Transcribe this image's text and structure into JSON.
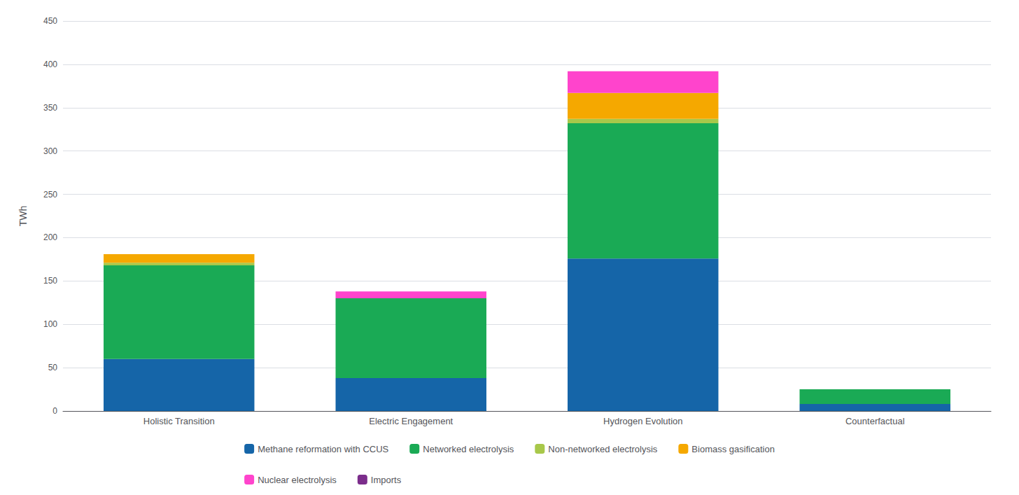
{
  "chart_data": {
    "type": "bar",
    "stacked": true,
    "categories": [
      "Holistic Transition",
      "Electric Engagement",
      "Hydrogen Evolution",
      "Counterfactual"
    ],
    "series": [
      {
        "name": "Methane reformation with CCUS",
        "color": "#1565a8",
        "values": [
          60,
          38,
          176,
          8
        ]
      },
      {
        "name": "Networked electrolysis",
        "color": "#1aaa55",
        "values": [
          108,
          92,
          156,
          17
        ]
      },
      {
        "name": "Non-networked electrolysis",
        "color": "#a8c84a",
        "values": [
          3,
          0,
          5,
          0
        ]
      },
      {
        "name": "Biomass gasification",
        "color": "#f5a800",
        "values": [
          10,
          0,
          30,
          0
        ]
      },
      {
        "name": "Nuclear electrolysis",
        "color": "#ff44cc",
        "values": [
          0,
          8,
          25,
          0
        ]
      },
      {
        "name": "Imports",
        "color": "#7b2d8b",
        "values": [
          0,
          0,
          0,
          0
        ]
      }
    ],
    "ylabel": "TWh",
    "ylim": [
      0,
      450
    ],
    "yticks": [
      0,
      50,
      100,
      150,
      200,
      250,
      300,
      350,
      400,
      450
    ],
    "grid": true,
    "legend": "bottom"
  }
}
